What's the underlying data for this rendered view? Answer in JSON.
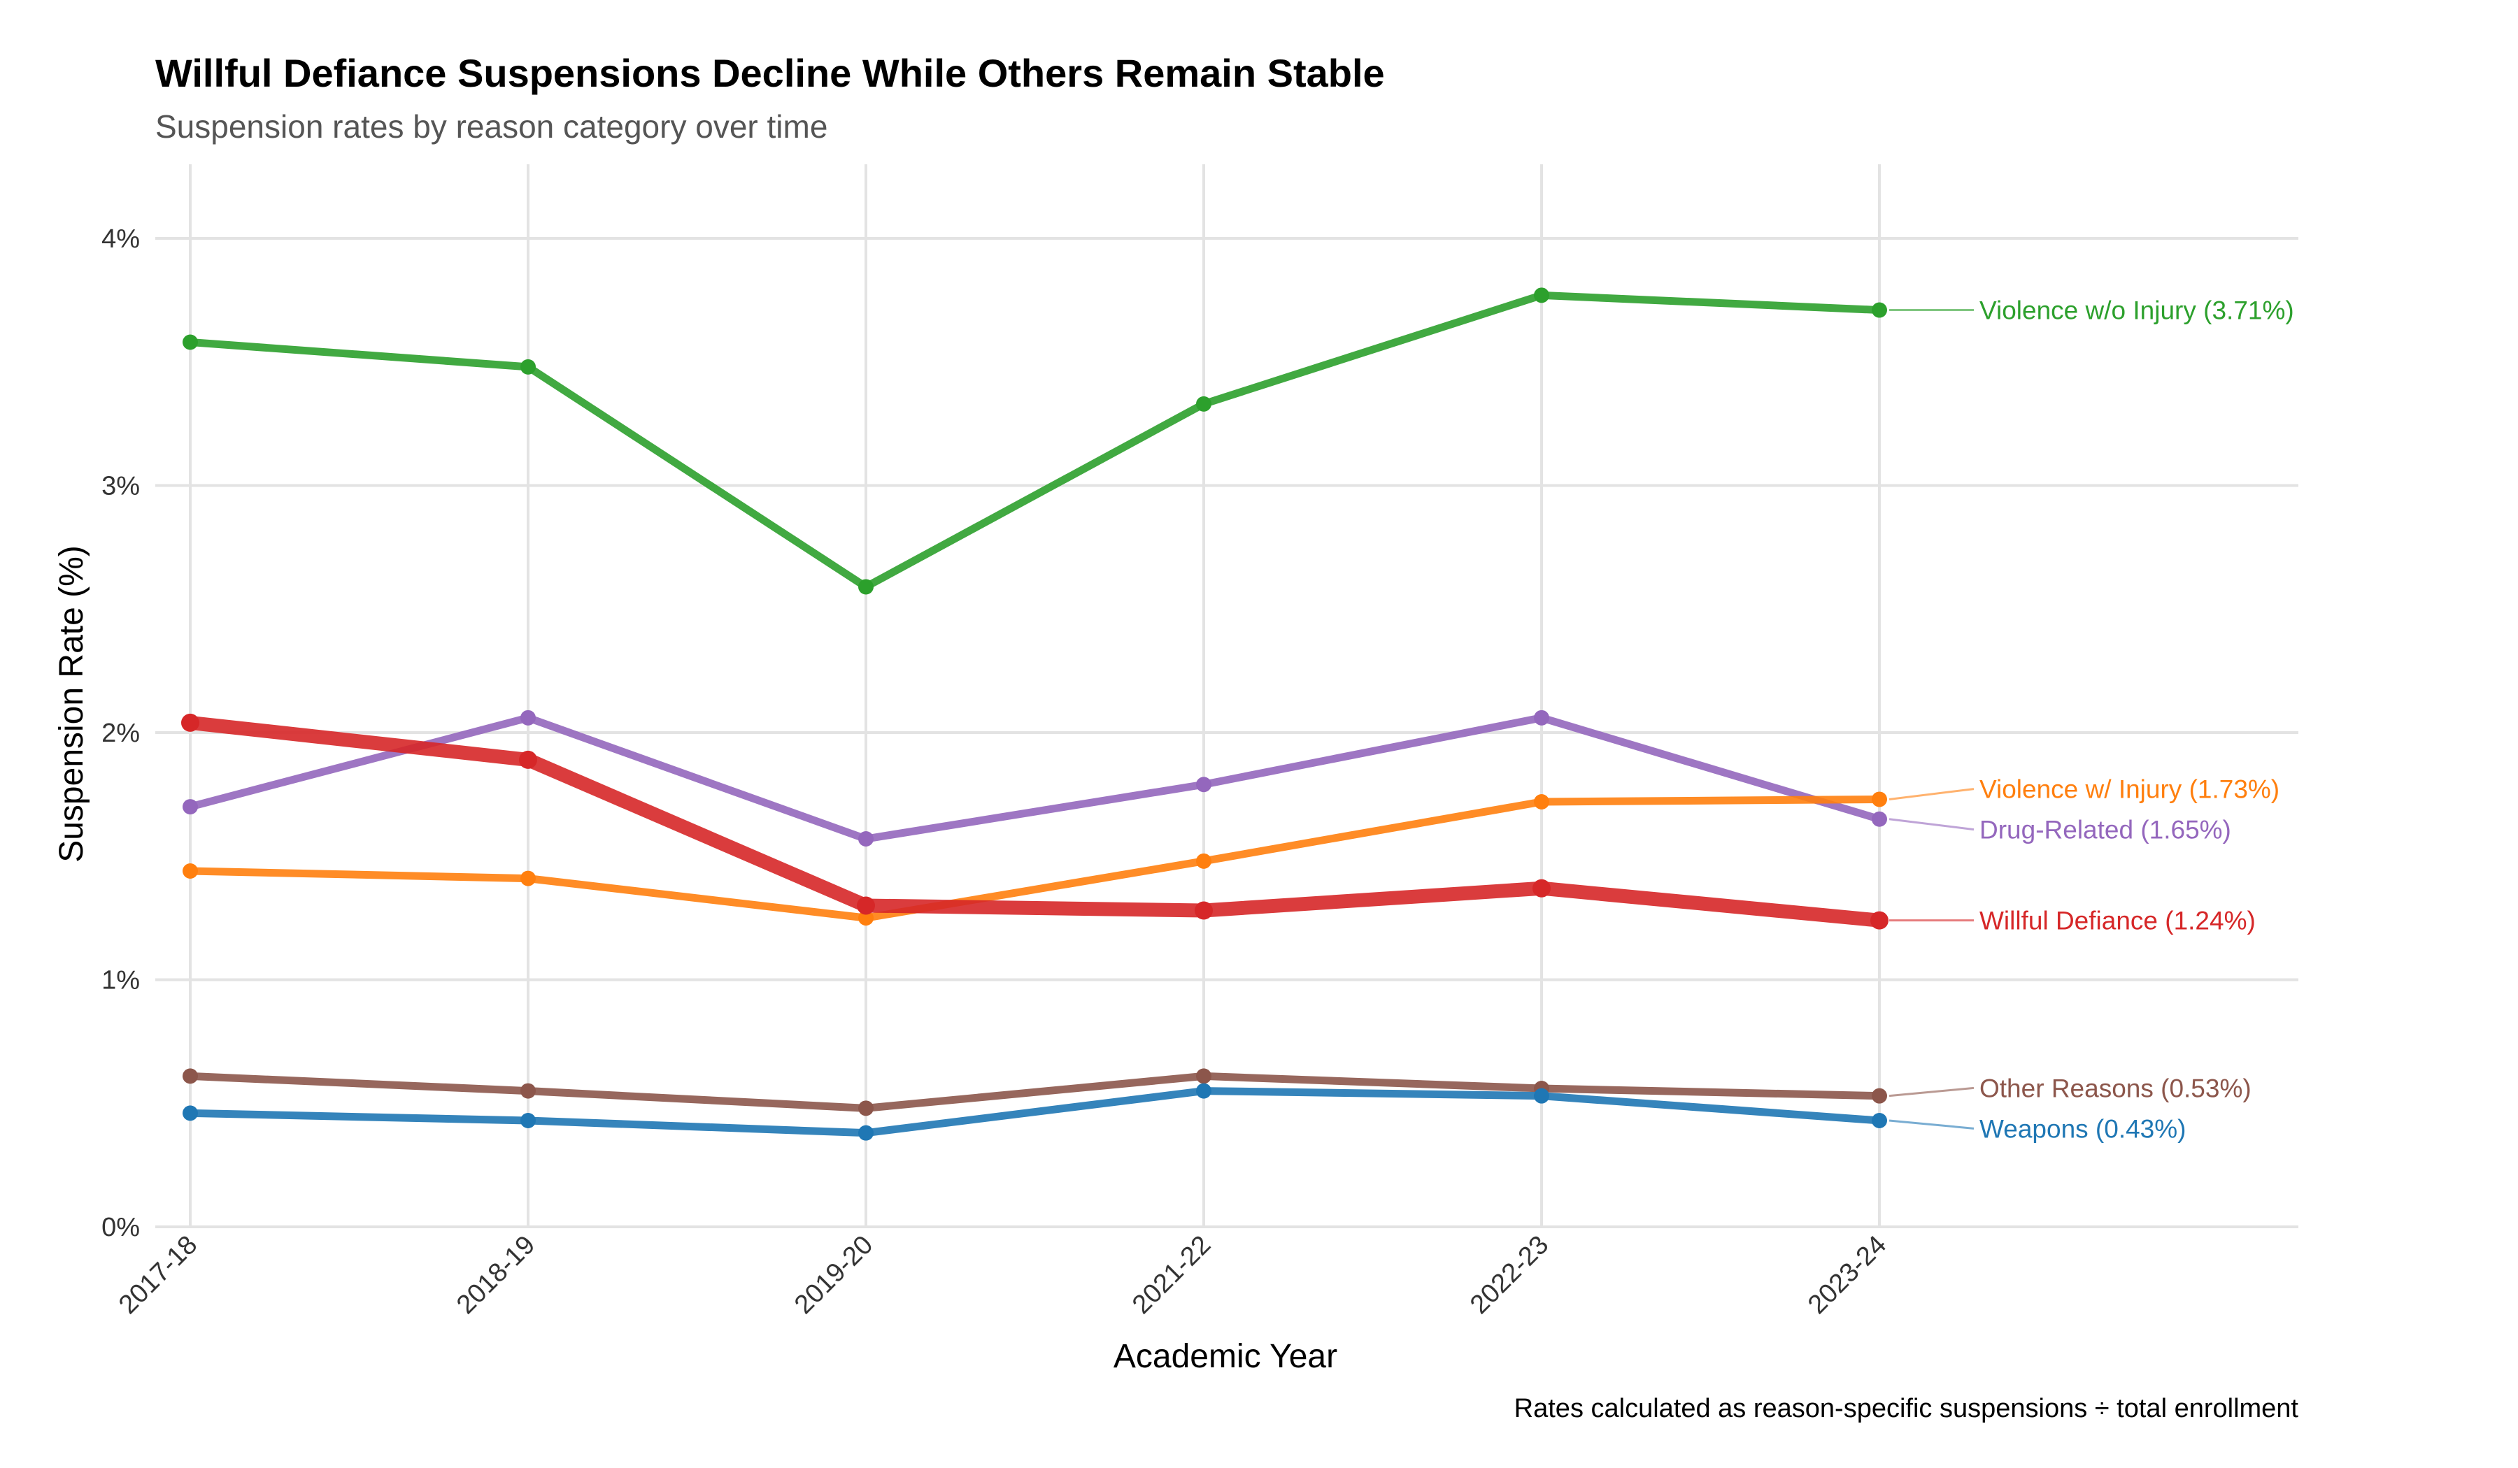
{
  "chart_data": {
    "type": "line",
    "title": "Willful Defiance Suspensions Decline While Others Remain Stable",
    "subtitle": "Suspension rates by reason category over time",
    "xlabel": "Academic Year",
    "ylabel": "Suspension Rate (%)",
    "caption": "Rates calculated as reason-specific suspensions ÷ total enrollment",
    "categories": [
      "2017-18",
      "2018-19",
      "2019-20",
      "2021-22",
      "2022-23",
      "2023-24"
    ],
    "ylim": [
      0,
      4.3
    ],
    "yticks": [
      0,
      1,
      2,
      3,
      4
    ],
    "ytick_labels": [
      "0%",
      "1%",
      "2%",
      "3%",
      "4%"
    ],
    "grid": true,
    "legend": "direct labels at line ends",
    "series": [
      {
        "name": "Violence w/o Injury",
        "color": "#2ca02c",
        "highlight": false,
        "values": [
          3.58,
          3.48,
          2.59,
          3.33,
          3.77,
          3.71
        ],
        "end_label": "Violence w/o Injury (3.71%)"
      },
      {
        "name": "Drug-Related",
        "color": "#9467bd",
        "highlight": false,
        "values": [
          1.7,
          2.06,
          1.57,
          1.79,
          2.06,
          1.65
        ],
        "end_label": "Drug-Related (1.65%)"
      },
      {
        "name": "Violence w/ Injury",
        "color": "#ff7f0e",
        "highlight": false,
        "values": [
          1.44,
          1.41,
          1.25,
          1.48,
          1.72,
          1.73
        ],
        "end_label": "Violence w/ Injury (1.73%)"
      },
      {
        "name": "Willful Defiance",
        "color": "#d62728",
        "highlight": true,
        "values": [
          2.04,
          1.89,
          1.3,
          1.28,
          1.37,
          1.24
        ],
        "end_label": "Willful Defiance (1.24%)"
      },
      {
        "name": "Other Reasons",
        "color": "#8c564b",
        "highlight": false,
        "values": [
          0.61,
          0.55,
          0.48,
          0.61,
          0.56,
          0.53
        ],
        "end_label": "Other Reasons (0.53%)"
      },
      {
        "name": "Weapons",
        "color": "#1f77b4",
        "highlight": false,
        "values": [
          0.46,
          0.43,
          0.38,
          0.55,
          0.53,
          0.43
        ],
        "end_label": "Weapons (0.43%)"
      }
    ]
  }
}
